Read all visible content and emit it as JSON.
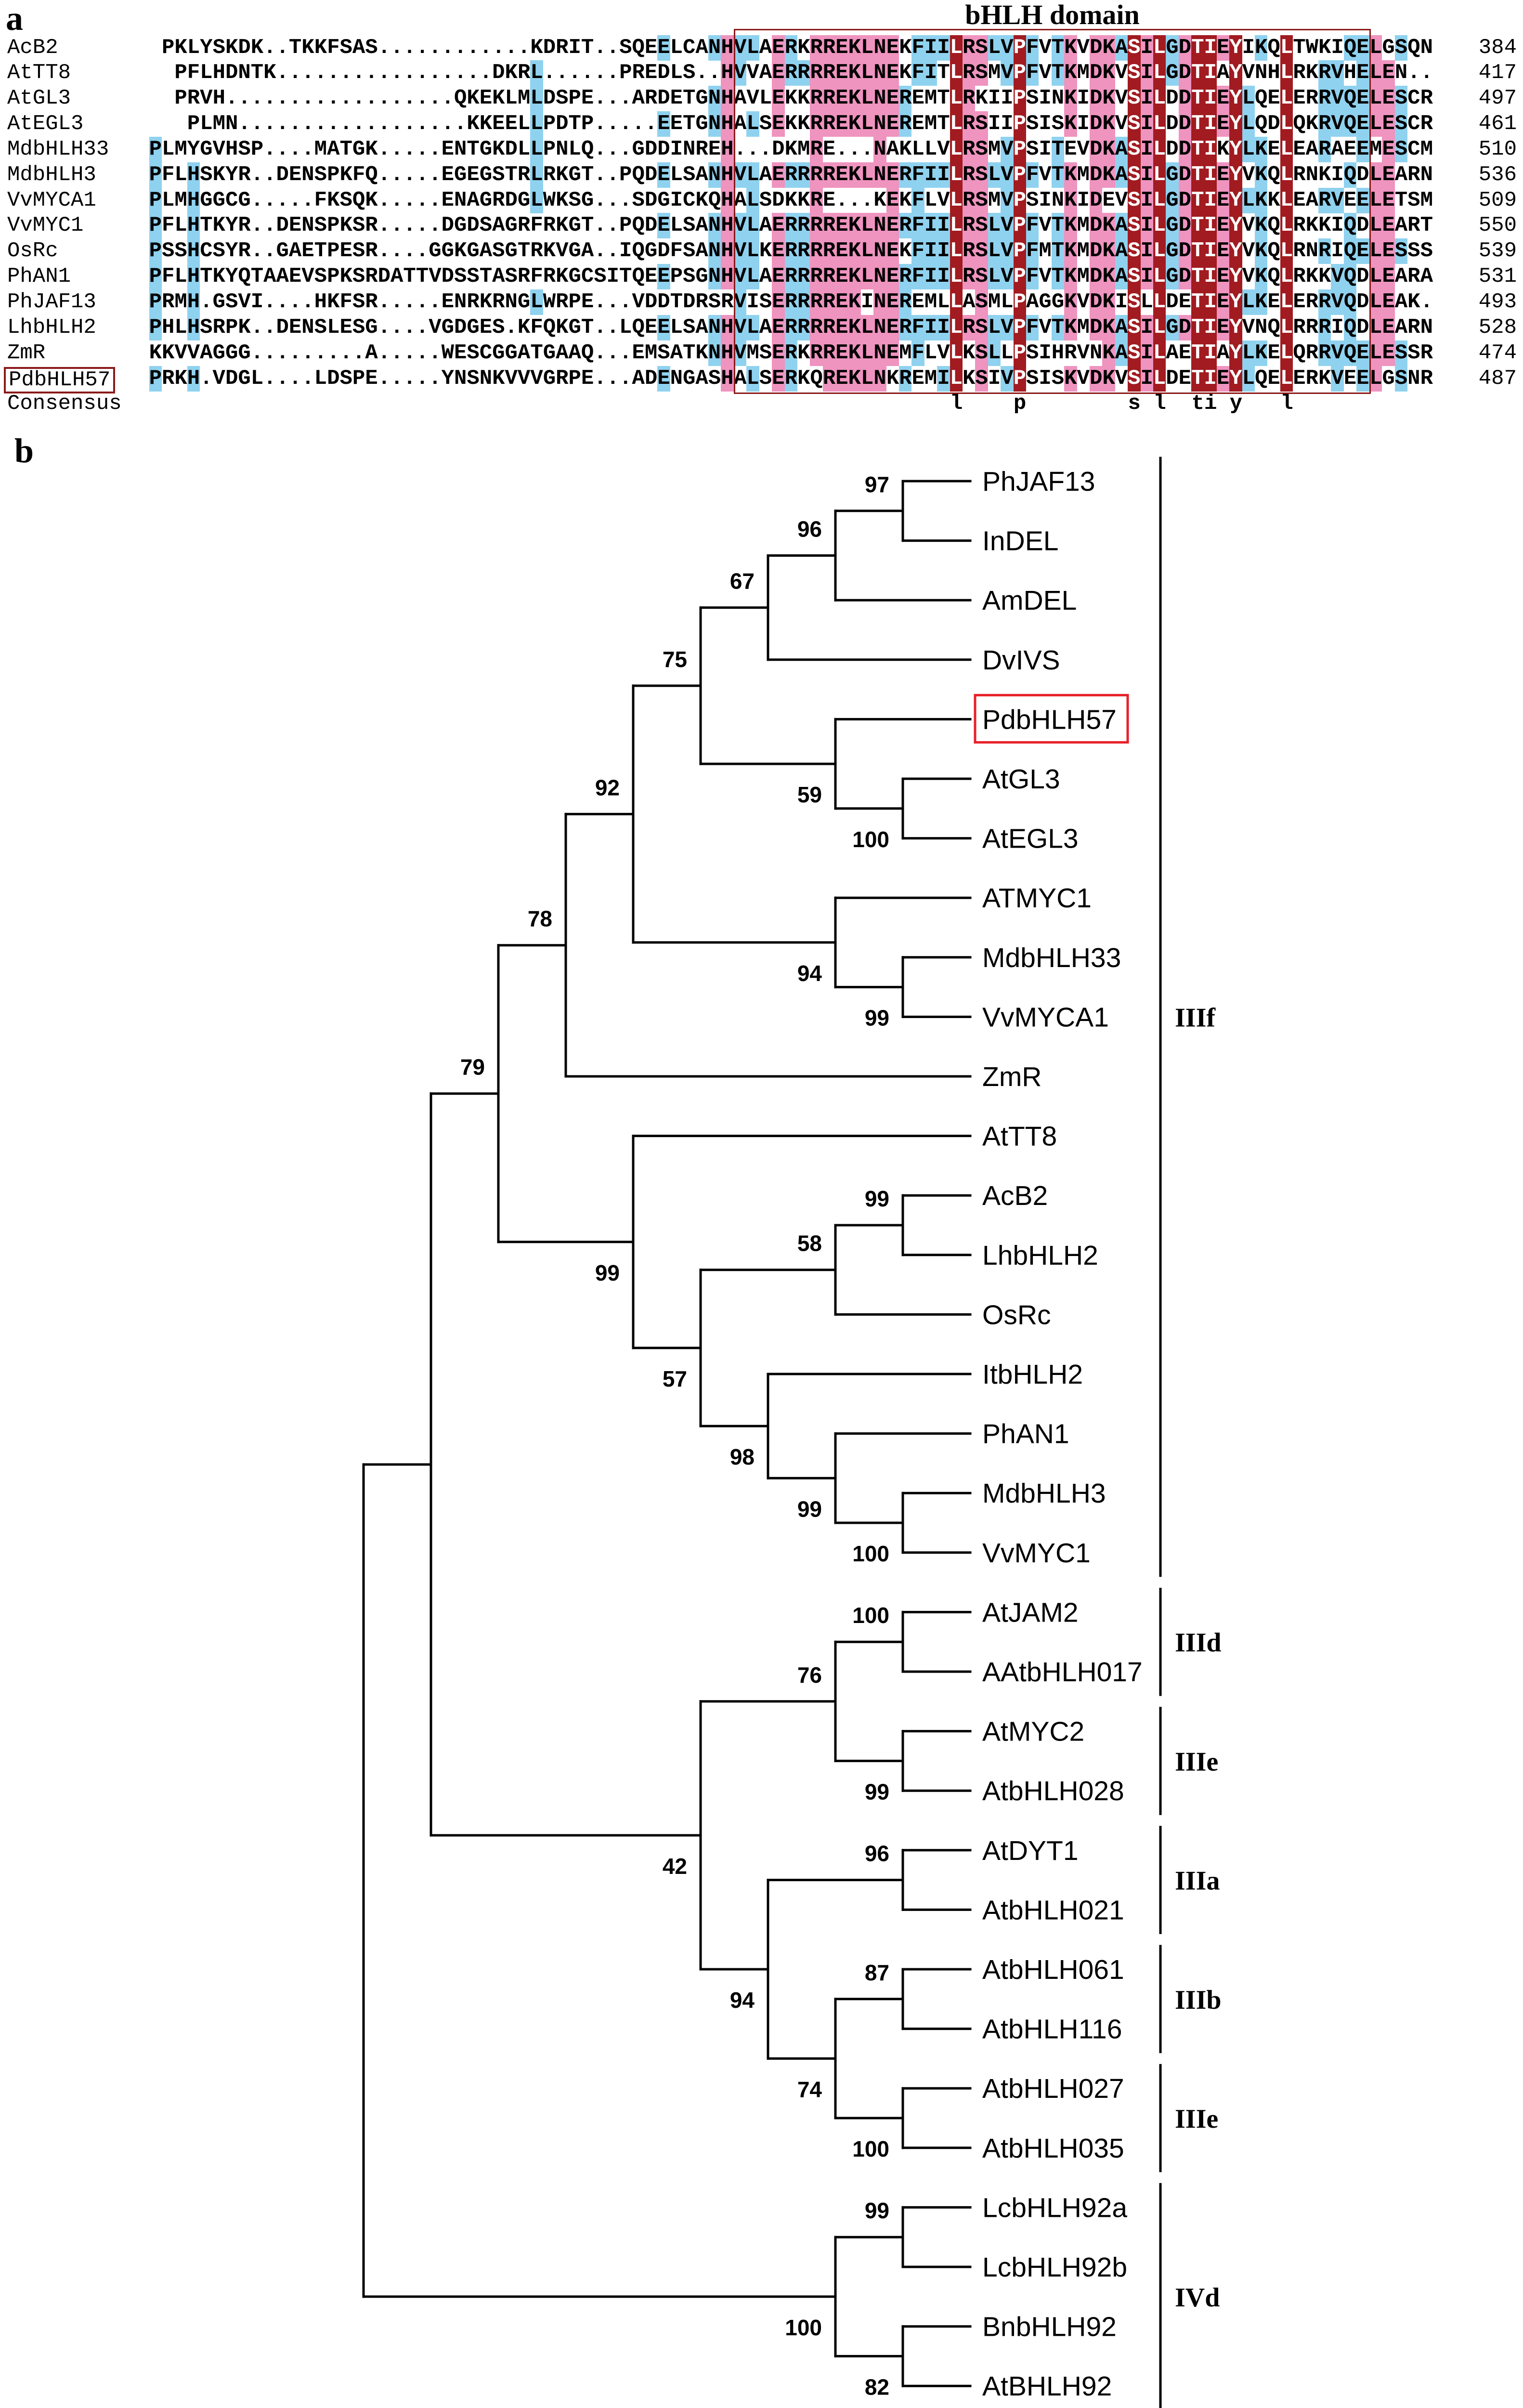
{
  "panel_a": {
    "label": "a",
    "domain_title": "bHLH domain",
    "colors": {
      "identical": "#a11b20",
      "high": "#ef93bf",
      "similar": "#8fd2ef",
      "box": "#8b1a1a"
    },
    "rows": [
      {
        "name": "AcB2",
        "left": "PKLYSKDK..TKKFSAS............KDRIT..SQEELCANH",
        "domain": "VLAERKRREKLNEKFIILRSLVPFVTKVDKASILGDTIEYIKQLTWKIQE",
        "tail": "LGSQN",
        "end": "384"
      },
      {
        "name": "AtTT8",
        "left": "PFLHDNTK.................DKRL......PREDLS..H",
        "domain": "VVAERRRREKLNEKFITLRSMVPFVTKMDKVSILGDTIAYVNHLRKRVHE",
        "tail": "LEN..",
        "end": "417"
      },
      {
        "name": "AtGL3",
        "left": "PRVH..................QKEKLMLDSPE...ARDETGNH",
        "domain": "AVLEKKRREKLNEREMTLRKIIPSINKIDKVSILDDTIEYLQELERRVQE",
        "tail": "LESCR",
        "end": "497"
      },
      {
        "name": "AtEGL3",
        "left": "PLMN..................KKEELLPDTP.....EETGNH",
        "domain": "ALSEKKRREKLNEREMTLRSIIPSISKIDKVSILDDTIEYLQDLQKRVQE",
        "tail": "LESCR",
        "end": "461"
      },
      {
        "name": "MdbHLH33",
        "left": "PLMYGVHSP....MATGK.....ENTGKDLLPNLQ...GDDINREH",
        "domain": "...DKMRE...NAKLLVLRSMVPSITEVDKASILDDTIKYLKELEARAEE",
        "tail": "MESCM",
        "end": "510"
      },
      {
        "name": "MdbHLH3",
        "left": "PFLHSKYR..DENSPKFQ.....EGEGSTRLRKGT..PQDELSANH",
        "domain": "VLAERRRREKLNERFIILRSLVPFVTKMDKASILGDTIEYVKQLRNKIQD",
        "tail": "LEARN",
        "end": "536"
      },
      {
        "name": "VvMYCA1",
        "left": "PLMHGGCG.....FKSQK.....ENAGRDGLWKSG...SDGICKQH",
        "domain": "ALSDKKRE...KEKFLVLRSMVPSINKIDEVSILGDTIEYLKKLEARVEE",
        "tail": "LETSM",
        "end": "509"
      },
      {
        "name": "VvMYC1",
        "left": "PFLHTKYR..DENSPKSR.....DGDSAGRFRKGT..PQDELSANH",
        "domain": "VLAERRRREKLNERFIILRSLVPFVTKMDKASILGDTIEYVKQLRKKIQD",
        "tail": "LEART",
        "end": "550"
      },
      {
        "name": "OsRc",
        "left": "PSSHCSYR..GAETPESR....GGKGASGTRKVGA..IQGDFSANH",
        "domain": "VLKERRRREKLNEKFIILRSLVPFMTKMDKASILGDTIEYVKQLRNRIQE",
        "tail": "LESSS",
        "end": "539"
      },
      {
        "name": "PhAN1",
        "left": "PFLHTKYQTAAEVSPKSRDATTVDSSTASRFRKGCSITQEEPSGNH",
        "domain": "VLAERRRREKLNERFIILRSLVPFVTKMDKASILGDTIEYVKQLRKKVQD",
        "tail": "LEARA",
        "end": "531"
      },
      {
        "name": "PhJAF13",
        "left": "PRMH.GSVI....HKFSR.....ENRKRNGLWRPE...VDDTDRSR",
        "domain": "VISERRRREKINEREMLLASMLPAGGKVDKISLLDETIEYLKELERRVQD",
        "tail": "LEAK.",
        "end": "493"
      },
      {
        "name": "LhbHLH2",
        "left": "PHLHSRPK..DENSLESG....VGDGES.KFQKGT..LQEELSANH",
        "domain": "VLAERRRREKLNERFIILRSLVPFVTKMDKASILGDTIEYVNQLRRRIQD",
        "tail": "LEARN",
        "end": "528"
      },
      {
        "name": "ZmR",
        "left": "KKVVAGGG.........A.....WESCGGATGAAQ...EMSATKNH",
        "domain": "VMSERKRREKLNEMFLVLKSLLPSIHRVNKASILAETIAYLKELQRRVQE",
        "tail": "LESSR",
        "end": "474"
      },
      {
        "name": "PdbHLH57",
        "left": "PRKH.VDGL....LDSPE.....YNSNKVVVGRPE...ADENGASH",
        "domain": "ALSERKQREKLNKREMILKSIVPSISKVDKVSILDETIEYLQELERKVEE",
        "tail": "LGSNR",
        "end": "487",
        "highlighted": true
      }
    ],
    "consensus_label": "Consensus",
    "consensus": "                 l    p        s l  ti y   l"
  },
  "panel_b": {
    "label": "b",
    "highlight_color": "#e8202a",
    "tree": {
      "children": [
        {
          "children": [
            {
              "bootstrap": "79",
              "clade_label": "IIIf",
              "children": [
                {
                  "bootstrap": "78",
                  "children": [
                    {
                      "bootstrap": "92",
                      "children": [
                        {
                          "bootstrap": "75",
                          "children": [
                            {
                              "bootstrap": "67",
                              "children": [
                                {
                                  "bootstrap": "96",
                                  "children": [
                                    {
                                      "bootstrap": "97",
                                      "children": [
                                        {
                                          "label": "PhJAF13"
                                        },
                                        {
                                          "label": "InDEL"
                                        }
                                      ]
                                    },
                                    {
                                      "label": "AmDEL"
                                    }
                                  ]
                                },
                                {
                                  "label": "DvIVS"
                                }
                              ]
                            },
                            {
                              "bootstrap": "59",
                              "children": [
                                {
                                  "label": "PdbHLH57",
                                  "highlighted": true
                                },
                                {
                                  "bootstrap": "100",
                                  "children": [
                                    {
                                      "label": "AtGL3"
                                    },
                                    {
                                      "label": "AtEGL3"
                                    }
                                  ]
                                }
                              ]
                            }
                          ]
                        },
                        {
                          "bootstrap": "94",
                          "children": [
                            {
                              "label": "ATMYC1"
                            },
                            {
                              "bootstrap": "99",
                              "children": [
                                {
                                  "label": "MdbHLH33"
                                },
                                {
                                  "label": "VvMYCA1"
                                }
                              ]
                            }
                          ]
                        }
                      ]
                    },
                    {
                      "label": "ZmR"
                    }
                  ]
                },
                {
                  "bootstrap": "99",
                  "children": [
                    {
                      "label": "AtTT8"
                    },
                    {
                      "bootstrap": "57",
                      "children": [
                        {
                          "bootstrap": "58",
                          "children": [
                            {
                              "bootstrap": "99",
                              "children": [
                                {
                                  "label": "AcB2"
                                },
                                {
                                  "label": "LhbHLH2"
                                }
                              ]
                            },
                            {
                              "label": "OsRc"
                            }
                          ]
                        },
                        {
                          "bootstrap": "98",
                          "children": [
                            {
                              "label": "ItbHLH2"
                            },
                            {
                              "bootstrap": "99",
                              "children": [
                                {
                                  "label": "PhAN1"
                                },
                                {
                                  "bootstrap": "100",
                                  "children": [
                                    {
                                      "label": "MdbHLH3"
                                    },
                                    {
                                      "label": "VvMYC1"
                                    }
                                  ]
                                }
                              ]
                            }
                          ]
                        }
                      ]
                    }
                  ]
                }
              ]
            },
            {
              "bootstrap": "42",
              "children": [
                {
                  "bootstrap": "76",
                  "children": [
                    {
                      "bootstrap": "100",
                      "clade_label": "IIId",
                      "children": [
                        {
                          "label": "AtJAM2"
                        },
                        {
                          "label": "AAtbHLH017"
                        }
                      ]
                    },
                    {
                      "bootstrap": "99",
                      "clade_label": "IIIe",
                      "children": [
                        {
                          "label": "AtMYC2"
                        },
                        {
                          "label": "AtbHLH028"
                        }
                      ]
                    }
                  ]
                },
                {
                  "bootstrap": "94",
                  "children": [
                    {
                      "bootstrap": "96",
                      "clade_label": "IIIa",
                      "children": [
                        {
                          "label": "AtDYT1"
                        },
                        {
                          "label": "AtbHLH021"
                        }
                      ]
                    },
                    {
                      "bootstrap": "74",
                      "children": [
                        {
                          "bootstrap": "87",
                          "clade_label": "IIIb",
                          "children": [
                            {
                              "label": "AtbHLH061"
                            },
                            {
                              "label": "AtbHLH116"
                            }
                          ]
                        },
                        {
                          "bootstrap": "100",
                          "clade_label": "IIIe",
                          "children": [
                            {
                              "label": "AtbHLH027"
                            },
                            {
                              "label": "AtbHLH035"
                            }
                          ]
                        }
                      ]
                    }
                  ]
                }
              ]
            }
          ]
        },
        {
          "bootstrap": "100",
          "clade_label": "IVd",
          "children": [
            {
              "bootstrap": "99",
              "children": [
                {
                  "label": "LcbHLH92a"
                },
                {
                  "label": "LcbHLH92b"
                }
              ]
            },
            {
              "bootstrap": "82",
              "children": [
                {
                  "label": "BnbHLH92"
                },
                {
                  "label": "AtBHLH92"
                }
              ]
            }
          ]
        }
      ]
    }
  }
}
